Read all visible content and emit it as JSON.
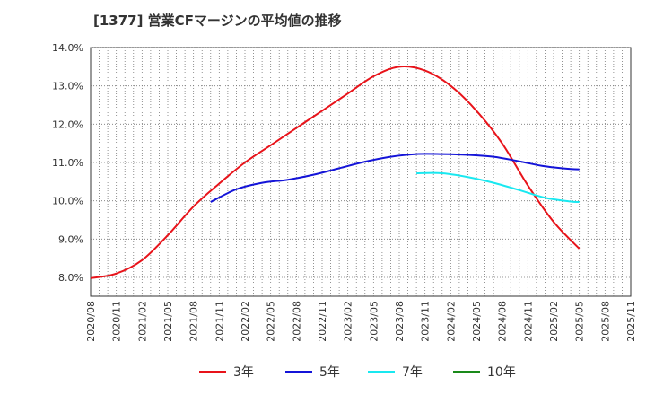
{
  "chart_data": {
    "type": "line",
    "title": "[1377]  営業CFマージンの平均値の推移",
    "xlabel": "",
    "ylabel": "",
    "ylim": [
      7.5,
      14.0
    ],
    "y_ticks": [
      "8.0%",
      "9.0%",
      "10.0%",
      "11.0%",
      "12.0%",
      "13.0%",
      "14.0%"
    ],
    "y_tick_values": [
      8,
      9,
      10,
      11,
      12,
      13,
      14
    ],
    "x_ticks": [
      "2020/08",
      "2020/11",
      "2021/02",
      "2021/05",
      "2021/08",
      "2021/11",
      "2022/02",
      "2022/05",
      "2022/08",
      "2022/11",
      "2023/02",
      "2023/05",
      "2023/08",
      "2023/11",
      "2024/02",
      "2024/05",
      "2024/08",
      "2024/11",
      "2025/02",
      "2025/05",
      "2025/08",
      "2025/11"
    ],
    "grid": true,
    "legend_position": "bottom",
    "series": [
      {
        "name": "3年",
        "color": "#e8131a",
        "x": [
          "2020/08",
          "2020/11",
          "2021/02",
          "2021/05",
          "2021/08",
          "2021/11",
          "2022/02",
          "2022/05",
          "2022/08",
          "2022/11",
          "2023/02",
          "2023/05",
          "2023/08",
          "2023/11",
          "2024/02",
          "2024/05",
          "2024/08",
          "2024/11",
          "2025/02",
          "2025/05"
        ],
        "values": [
          7.98,
          8.1,
          8.45,
          9.1,
          9.85,
          10.45,
          11.0,
          11.45,
          11.9,
          12.35,
          12.8,
          13.25,
          13.5,
          13.4,
          13.0,
          12.35,
          11.5,
          10.4,
          9.45,
          8.75
        ]
      },
      {
        "name": "5年",
        "color": "#1414d8",
        "x": [
          "2021/10",
          "2022/01",
          "2022/04",
          "2022/07",
          "2022/10",
          "2023/01",
          "2023/04",
          "2023/07",
          "2023/10",
          "2024/01",
          "2024/04",
          "2024/07",
          "2024/10",
          "2025/01",
          "2025/04",
          "2025/05"
        ],
        "values": [
          9.97,
          10.3,
          10.47,
          10.55,
          10.68,
          10.85,
          11.02,
          11.15,
          11.22,
          11.22,
          11.2,
          11.15,
          11.03,
          10.9,
          10.83,
          10.82
        ]
      },
      {
        "name": "7年",
        "color": "#19e8f0",
        "x": [
          "2023/10",
          "2024/01",
          "2024/04",
          "2024/07",
          "2024/10",
          "2025/01",
          "2025/04",
          "2025/05"
        ],
        "values": [
          10.72,
          10.72,
          10.62,
          10.47,
          10.28,
          10.08,
          9.98,
          9.97
        ]
      },
      {
        "name": "10年",
        "color": "#1a8a1a",
        "x": [],
        "values": []
      }
    ]
  }
}
